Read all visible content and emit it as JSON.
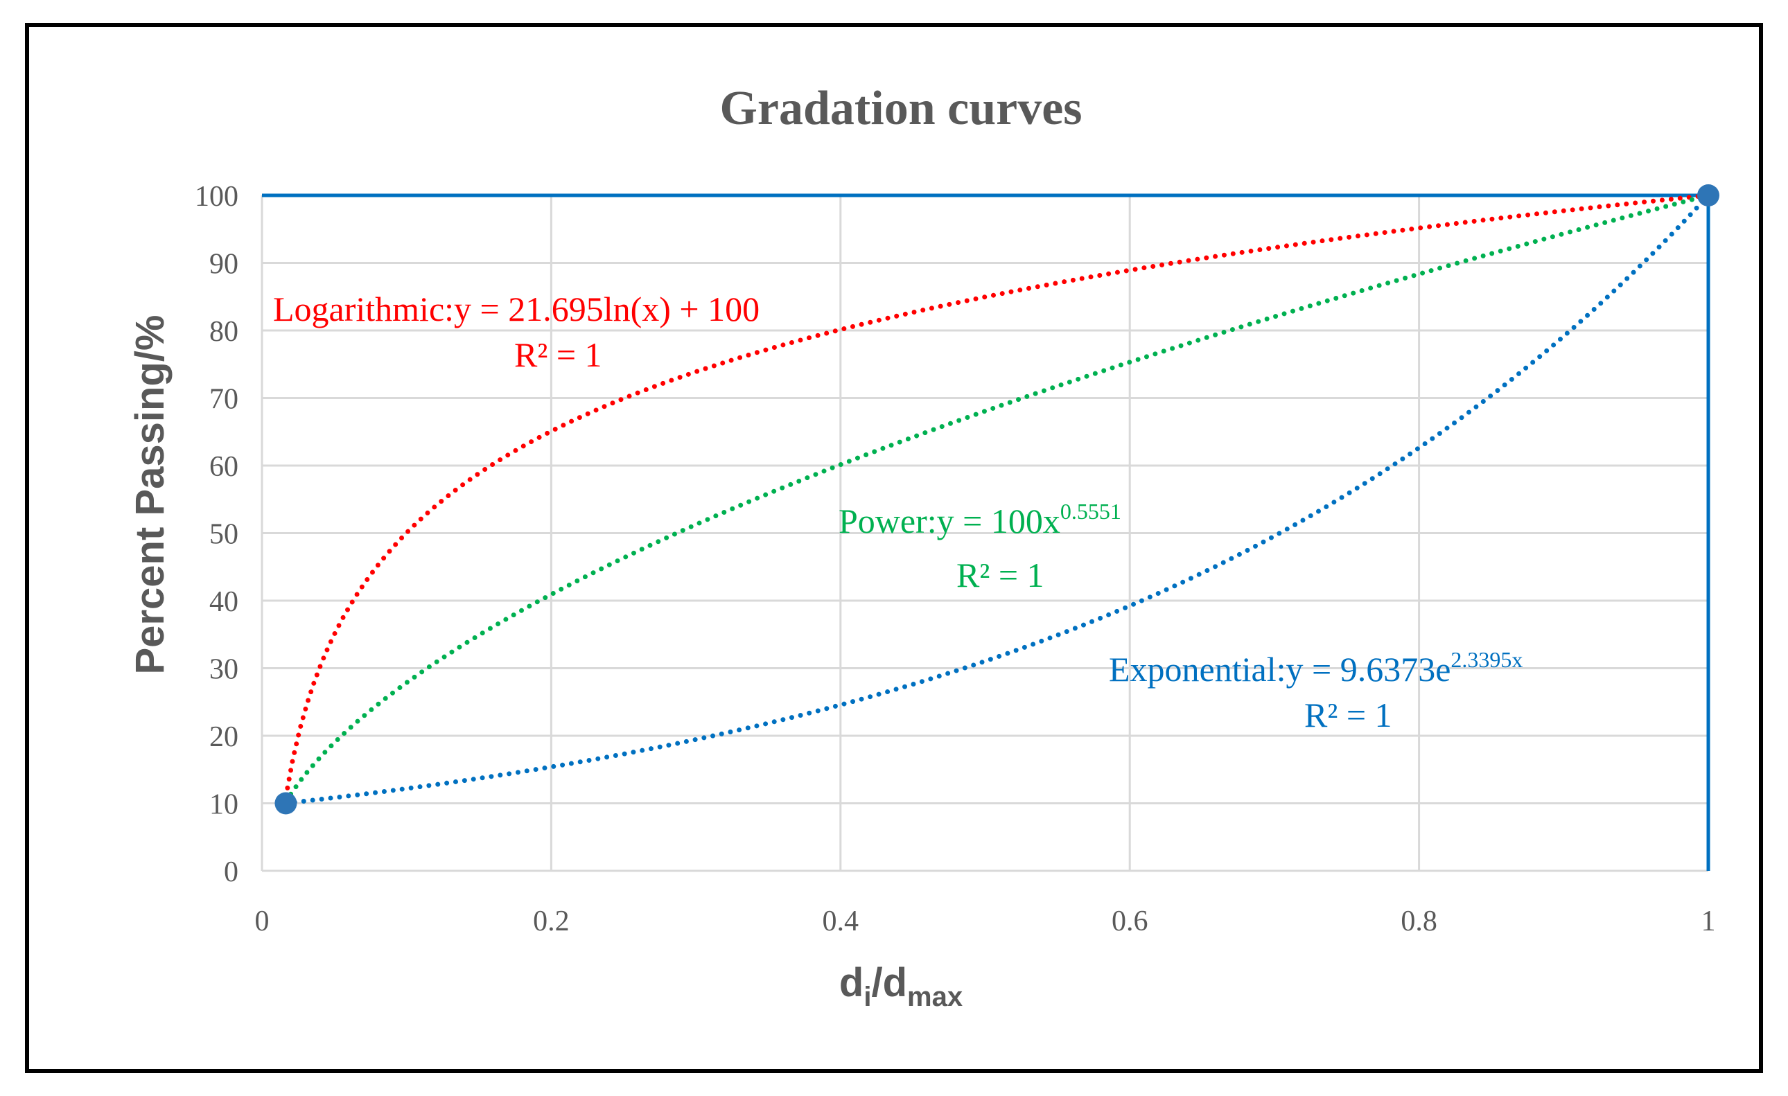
{
  "chart_data": {
    "type": "scatter",
    "title": "Gradation curves",
    "xlabel": {
      "main": "d",
      "sub1": "i",
      "mid": "/d",
      "sub2": "max"
    },
    "ylabel": "Percent Passing/%",
    "xlim": [
      0,
      1
    ],
    "ylim": [
      0,
      100
    ],
    "x_ticks": [
      "0",
      "0.2",
      "0.4",
      "0.6",
      "0.8",
      "1"
    ],
    "y_ticks": [
      "0",
      "10",
      "20",
      "30",
      "40",
      "50",
      "60",
      "70",
      "80",
      "90",
      "100"
    ],
    "grid": true,
    "data_points": {
      "x": [
        0.0165,
        1.0
      ],
      "y": [
        10,
        100
      ],
      "color": "#2E75B6"
    },
    "series": [
      {
        "name": "Logarithmic",
        "model": "log",
        "a": 21.695,
        "b": 100,
        "color": "#FF0000",
        "equation": "Logarithmic:y  = 21.695ln(x)  + 100",
        "r2": "R² = 1"
      },
      {
        "name": "Power",
        "model": "power",
        "a": 100,
        "b": 0.5551,
        "color": "#00B050",
        "equation_base": "Power:y = 100x",
        "equation_exp": "0.5551",
        "r2": "R² = 1"
      },
      {
        "name": "Exponential",
        "model": "exp",
        "a": 9.6373,
        "b": 2.3395,
        "color": "#0070C0",
        "equation_base": "Exponential:y  = 9.6373e",
        "equation_exp": "2.3395x",
        "r2": "R² = 1"
      }
    ],
    "colors": {
      "grid": "#D9D9D9",
      "text": "#595959",
      "frame": "#000000",
      "axis_line": "#0070C0"
    }
  }
}
